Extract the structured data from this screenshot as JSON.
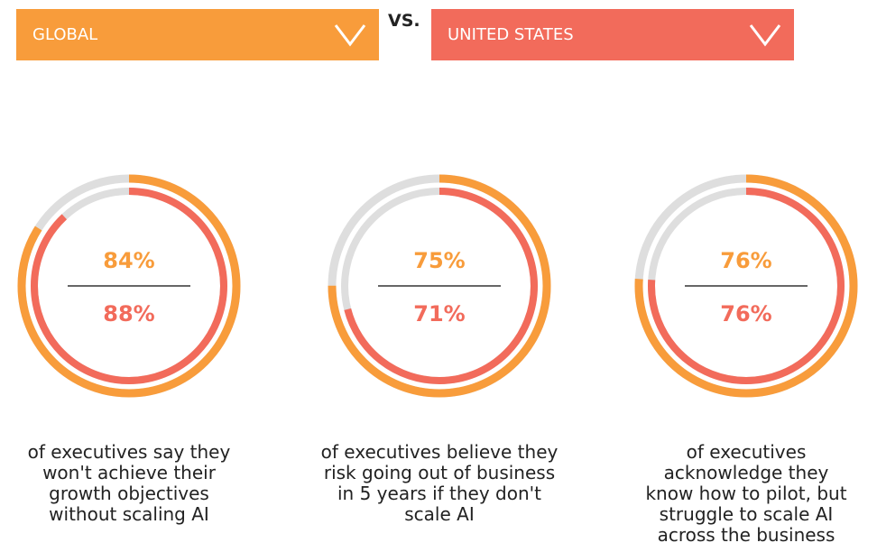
{
  "selectors": [
    {
      "label": "GLOBAL",
      "color": "#f89c3b"
    },
    {
      "label": "UNITED STATES",
      "color": "#f26b5b"
    }
  ],
  "versus": "VS.",
  "track_color": "#dedede",
  "stats": [
    {
      "values": [
        84,
        88
      ],
      "value_labels": [
        "84%",
        "88%"
      ],
      "caption": [
        "of executives say they",
        "won't achieve their",
        "growth objectives",
        "without scaling AI"
      ]
    },
    {
      "values": [
        75,
        71
      ],
      "value_labels": [
        "75%",
        "71%"
      ],
      "caption": [
        "of executives believe they",
        "risk going out of business",
        "in 5 years if they don't",
        "scale AI"
      ]
    },
    {
      "values": [
        76,
        76
      ],
      "value_labels": [
        "76%",
        "76%"
      ],
      "caption": [
        "of executives",
        "acknowledge they",
        "know how to pilot, but",
        "struggle to scale AI",
        "across the business"
      ]
    }
  ]
}
